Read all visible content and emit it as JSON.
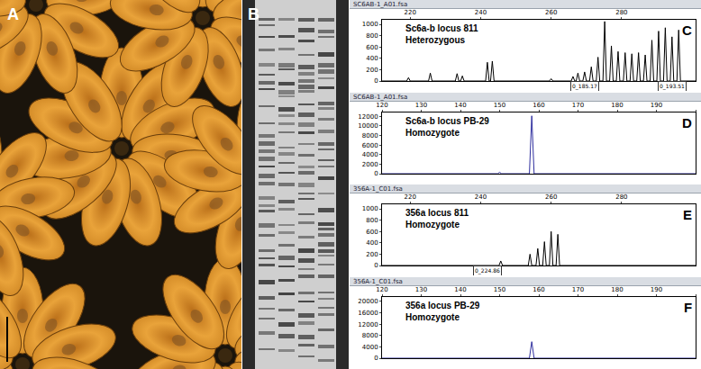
{
  "panels": [
    {
      "label": "A"
    },
    {
      "label": "B"
    }
  ],
  "chart_data": [
    {
      "type": "line",
      "label": "C",
      "file": "SC6AB-1_A01.fsa",
      "title": "Sc6a-b locus 811",
      "subtitle": "Heterozygous",
      "color": "#000000",
      "x": [
        212,
        219.0,
        219.5,
        220.0,
        225.2,
        225.7,
        226.2,
        232.8,
        233.3,
        233.8,
        234.3,
        234.8,
        235.3,
        241.4,
        241.9,
        242.4,
        242.8,
        243.3,
        243.8,
        259.5,
        260,
        260.5,
        265.7,
        266.2,
        266.7,
        267.1,
        267.6,
        268.1,
        269.0,
        269.5,
        270.0,
        270.9,
        271.4,
        271.9,
        272.8,
        273.3,
        273.8,
        274.7,
        275.2,
        275.7,
        276.6,
        277.1,
        277.6,
        278.5,
        279.0,
        279.5,
        280.5,
        281.0,
        281.5,
        282.4,
        282.9,
        283.4,
        284.3,
        284.8,
        285.3,
        286.2,
        286.7,
        287.2,
        288.1,
        288.6,
        289.1,
        290.0,
        290.5,
        291.0,
        291.9,
        292.4,
        292.9,
        293.8,
        294.3,
        294.8,
        295.7,
        296.2,
        296.7,
        301
      ],
      "values": [
        0,
        0,
        60,
        0,
        0,
        140,
        0,
        0,
        130,
        0,
        0,
        90,
        0,
        0,
        330,
        0,
        0,
        350,
        0,
        0,
        40,
        0,
        0,
        80,
        0,
        0,
        140,
        0,
        0,
        160,
        0,
        0,
        250,
        0,
        0,
        420,
        0,
        0,
        1050,
        0,
        0,
        620,
        0,
        0,
        520,
        0,
        0,
        500,
        0,
        0,
        480,
        0,
        0,
        500,
        0,
        0,
        460,
        0,
        0,
        720,
        0,
        0,
        880,
        0,
        0,
        940,
        0,
        0,
        780,
        0,
        0,
        900,
        0,
        0
      ],
      "xlim": [
        212,
        301
      ],
      "xticks": [
        220,
        240,
        260,
        280
      ],
      "ylim": [
        0,
        1080
      ],
      "yticks": [
        0,
        200,
        400,
        600,
        800,
        1000
      ],
      "annotations": [
        {
          "text": "0_185.17",
          "x": 269.5
        },
        {
          "text": "0_193.51",
          "x": 294.3
        }
      ]
    },
    {
      "type": "line",
      "label": "D",
      "file": "SC6AB-1_A01.fsa",
      "title": "Sc6a-b locus PB-29",
      "subtitle": "Homozygote",
      "color": "#2e2e9e",
      "x": [
        120,
        149.5,
        150,
        150.5,
        157.6,
        158.2,
        158.8,
        200
      ],
      "values": [
        0,
        0,
        300,
        0,
        0,
        12100,
        0,
        0
      ],
      "xlim": [
        120,
        200
      ],
      "xticks": [
        120,
        130,
        140,
        150,
        160,
        170,
        180,
        190,
        200
      ],
      "ylim": [
        0,
        12800
      ],
      "yticks": [
        0,
        2000,
        4000,
        6000,
        8000,
        10000,
        12000
      ],
      "annotations": []
    },
    {
      "type": "line",
      "label": "E",
      "file": "356A-1_C01.fsa",
      "title": "356a locus 811",
      "subtitle": "Homozygote",
      "color": "#000000",
      "x": [
        212,
        245.2,
        245.7,
        246.2,
        253.5,
        254,
        254.5,
        255.7,
        256.2,
        256.7,
        257.6,
        258.1,
        258.6,
        259.5,
        260,
        260.5,
        261.4,
        261.9,
        262.4,
        301
      ],
      "values": [
        0,
        0,
        80,
        0,
        0,
        200,
        0,
        0,
        300,
        0,
        0,
        420,
        0,
        0,
        600,
        0,
        0,
        550,
        0,
        0
      ],
      "xlim": [
        212,
        301
      ],
      "xticks": [
        220,
        240,
        260,
        280
      ],
      "ylim": [
        0,
        1080
      ],
      "yticks": [
        0,
        200,
        400,
        600,
        800,
        1000
      ],
      "annotations": [
        {
          "text": "0_224.86",
          "x": 242
        }
      ]
    },
    {
      "type": "line",
      "label": "F",
      "file": "356A-1_C01.fsa",
      "title": "356a locus PB-29",
      "subtitle": "Homozygote",
      "color": "#2e2e9e",
      "x": [
        120,
        157.6,
        158.2,
        158.8,
        200
      ],
      "values": [
        0,
        0,
        5800,
        0,
        0
      ],
      "xlim": [
        120,
        200
      ],
      "xticks": [
        120,
        130,
        140,
        150,
        160,
        170,
        180,
        190,
        200
      ],
      "ylim": [
        0,
        21500
      ],
      "yticks": [
        0,
        4000,
        8000,
        12000,
        16000,
        20000
      ],
      "annotations": []
    }
  ]
}
